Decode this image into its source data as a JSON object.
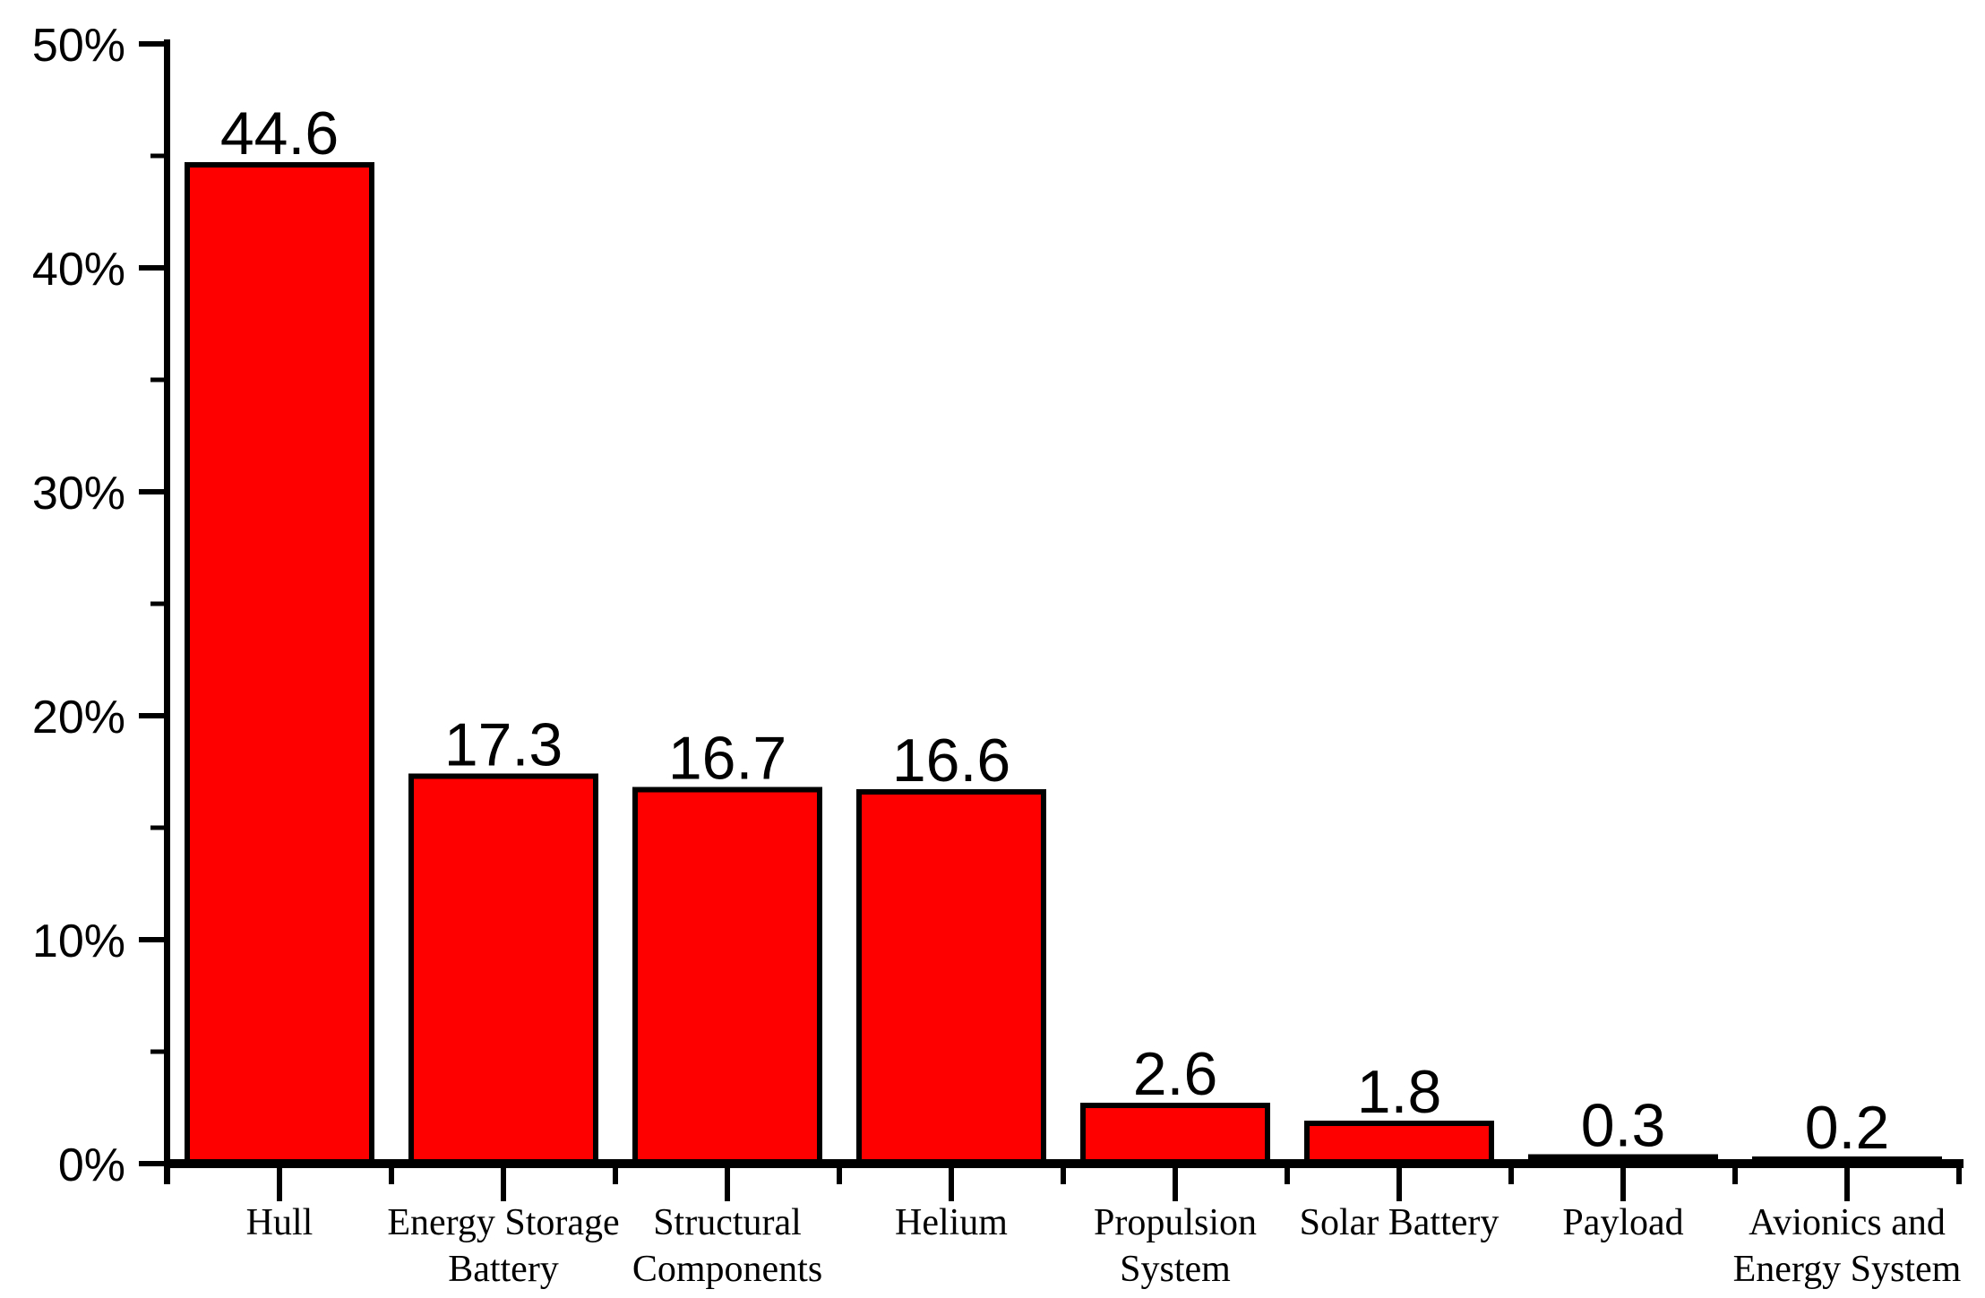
{
  "chart_data": {
    "type": "bar",
    "categories": [
      "Hull",
      "Energy Storage Battery",
      "Structural Components",
      "Helium",
      "Propulsion System",
      "Solar Battery",
      "Payload",
      "Avionics and Energy System"
    ],
    "category_lines": [
      [
        "Hull"
      ],
      [
        "Energy Storage",
        "Battery"
      ],
      [
        "Structural",
        "Components"
      ],
      [
        "Helium"
      ],
      [
        "Propulsion",
        "System"
      ],
      [
        "Solar Battery"
      ],
      [
        "Payload"
      ],
      [
        "Avionics and",
        "Energy System"
      ]
    ],
    "values": [
      44.6,
      17.3,
      16.7,
      16.6,
      2.6,
      1.8,
      0.3,
      0.2
    ],
    "value_labels": [
      "44.6",
      "17.3",
      "16.7",
      "16.6",
      "2.6",
      "1.8",
      "0.3",
      "0.2"
    ],
    "title": "",
    "xlabel": "",
    "ylabel": "",
    "ylim": [
      0,
      50
    ],
    "y_major_step": 10,
    "y_minor_step": 5,
    "y_tick_labels": [
      "0%",
      "10%",
      "20%",
      "30%",
      "40%",
      "50%"
    ],
    "grid": "off",
    "legend": "none",
    "unit": "percent",
    "colors": {
      "bar_fill": "#FF0000",
      "bar_border": "#000000",
      "axis": "#000000",
      "text": "#000000",
      "background": "#FFFFFF"
    }
  }
}
